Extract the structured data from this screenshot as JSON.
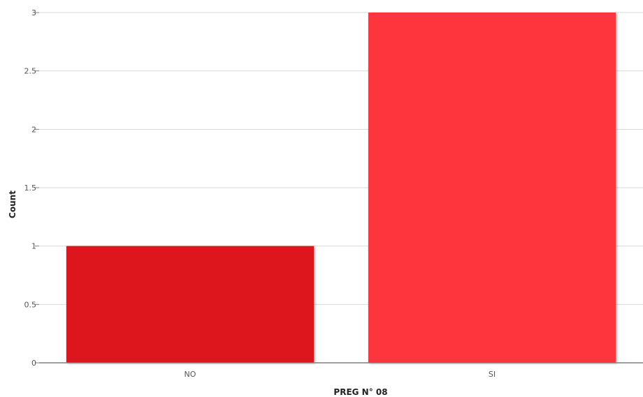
{
  "chart_data": {
    "type": "bar",
    "categories": [
      "NO",
      "SI"
    ],
    "values": [
      1,
      3
    ],
    "colors": [
      "#DC181E",
      "#FE363D"
    ],
    "xlabel": "PREG N° 08",
    "ylabel": "Count",
    "ylim": [
      0,
      3
    ],
    "yticks": [
      "0",
      "0.5",
      "1",
      "1.5",
      "2",
      "2.5",
      "3"
    ],
    "grid": true,
    "legend": "none"
  }
}
